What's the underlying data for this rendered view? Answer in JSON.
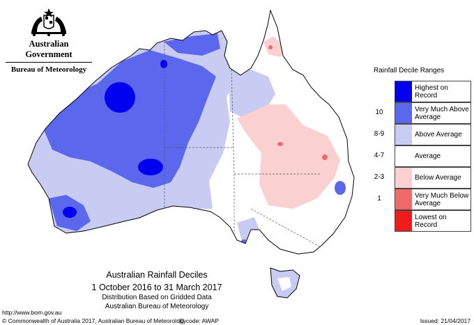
{
  "header": {
    "government": "Australian Government",
    "bureau": "Bureau of Meteorology"
  },
  "legend": {
    "title": "Rainfall Decile Ranges",
    "items": [
      {
        "key": "",
        "label": "Highest on Record",
        "color": "#0000ee"
      },
      {
        "key": "10",
        "label": "Very Much Above Average",
        "color": "#5b68ee"
      },
      {
        "key": "8-9",
        "label": "Above Average",
        "color": "#c8ccf2"
      },
      {
        "key": "4-7",
        "label": "Average",
        "color": "#ffffff"
      },
      {
        "key": "2-3",
        "label": "Below Average",
        "color": "#fbd0d0"
      },
      {
        "key": "1",
        "label": "Very Much Below Average",
        "color": "#f06a6a"
      },
      {
        "key": "",
        "label": "Lowest on Record",
        "color": "#ee1c1c"
      }
    ]
  },
  "map": {
    "title": "Australian Rainfall Deciles",
    "period": "1 October 2016 to 31 March 2017",
    "basis": "Distribution Based on Gridded Data",
    "source": "Australian Bureau of Meteorology"
  },
  "footer": {
    "url": "http://www.bom.gov.au",
    "copyright": "© Commonwealth of Australia 2017, Australian Bureau of Meteorology",
    "id_code": "ID code: AWAP",
    "issued": "Issued: 21/04/2017"
  }
}
